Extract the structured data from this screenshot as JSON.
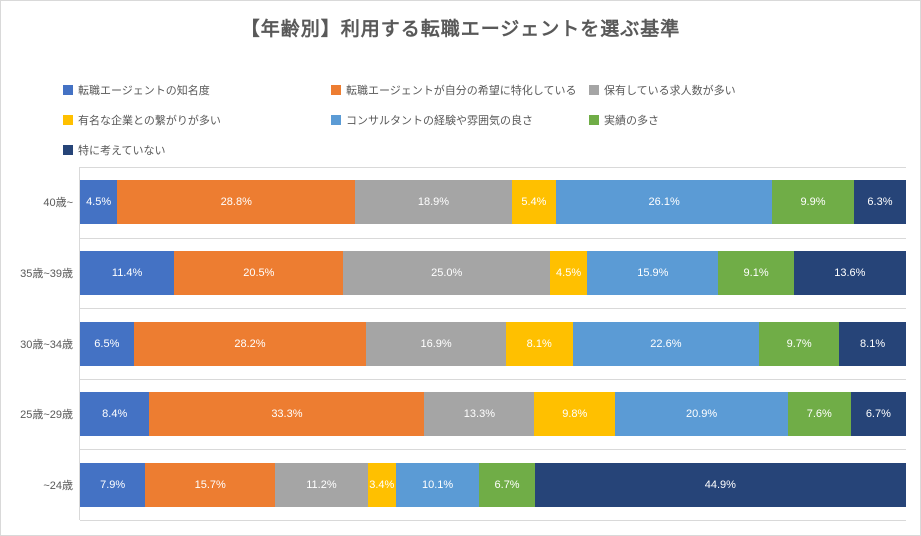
{
  "title": "【年齢別】利用する転職エージェントを選ぶ基準",
  "colors": {
    "border": "#d9d9d9",
    "text_gray": "#595959",
    "label_white": "#ffffff",
    "series": [
      "#4472C4",
      "#ED7D31",
      "#A5A5A5",
      "#FFC000",
      "#5B9BD5",
      "#70AD47",
      "#264478"
    ]
  },
  "chart_data": {
    "type": "bar",
    "subtype": "stacked-horizontal-100pct",
    "title": "【年齢別】利用する転職エージェントを選ぶ基準",
    "unit": "%",
    "xlim": [
      0,
      100
    ],
    "grid": "category-boundaries",
    "legend_position": "top",
    "value_label_format": "0.0%",
    "categories": [
      "40歳~",
      "35歳~39歳",
      "30歳~34歳",
      "25歳~29歳",
      "~24歳"
    ],
    "series": [
      {
        "name": "転職エージェントの知名度",
        "color": "#4472C4",
        "values": [
          4.5,
          11.4,
          6.5,
          8.4,
          7.9
        ]
      },
      {
        "name": "転職エージェントが自分の希望に特化している",
        "color": "#ED7D31",
        "values": [
          28.8,
          20.5,
          28.2,
          33.3,
          15.7
        ]
      },
      {
        "name": "保有している求人数が多い",
        "color": "#A5A5A5",
        "values": [
          18.9,
          25.0,
          16.9,
          13.3,
          11.2
        ]
      },
      {
        "name": "有名な企業との繋がりが多い",
        "color": "#FFC000",
        "values": [
          5.4,
          4.5,
          8.1,
          9.8,
          3.4
        ]
      },
      {
        "name": "コンサルタントの経験や雰囲気の良さ",
        "color": "#5B9BD5",
        "values": [
          26.1,
          15.9,
          22.6,
          20.9,
          10.1
        ]
      },
      {
        "name": "実績の多さ",
        "color": "#70AD47",
        "values": [
          9.9,
          9.1,
          9.7,
          7.6,
          6.7
        ]
      },
      {
        "name": "特に考えていない",
        "color": "#264478",
        "values": [
          6.3,
          13.6,
          8.1,
          6.7,
          44.9
        ]
      }
    ]
  }
}
